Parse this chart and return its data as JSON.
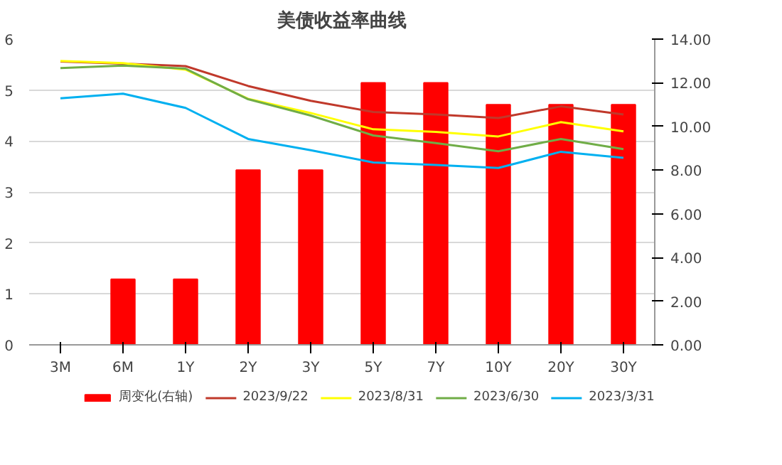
{
  "chart_data": {
    "type": "line",
    "title": "美债收益率曲线",
    "categories": [
      "3M",
      "6M",
      "1Y",
      "2Y",
      "3Y",
      "5Y",
      "7Y",
      "10Y",
      "20Y",
      "30Y"
    ],
    "series": [
      {
        "name": "周变化(右轴)",
        "type": "bar",
        "axis": "y2",
        "color": "#ff0000",
        "values": [
          0,
          3,
          3,
          8,
          8,
          12,
          12,
          11,
          11,
          11
        ]
      },
      {
        "name": "2023/9/22",
        "color": "#c0392b",
        "values": [
          5.56,
          5.52,
          5.47,
          5.08,
          4.79,
          4.57,
          4.52,
          4.45,
          4.68,
          4.52
        ]
      },
      {
        "name": "2023/8/31",
        "color": "#ffff00",
        "values": [
          5.57,
          5.53,
          5.4,
          4.83,
          4.55,
          4.23,
          4.18,
          4.09,
          4.37,
          4.19
        ]
      },
      {
        "name": "2023/6/30",
        "color": "#70ad47",
        "values": [
          5.43,
          5.48,
          5.42,
          4.82,
          4.5,
          4.11,
          3.96,
          3.8,
          4.04,
          3.84
        ]
      },
      {
        "name": "2023/3/31",
        "color": "#00b0f0",
        "values": [
          4.84,
          4.93,
          4.65,
          4.04,
          3.82,
          3.58,
          3.53,
          3.47,
          3.79,
          3.67
        ]
      }
    ],
    "ylim": [
      0,
      6
    ],
    "yticks": [
      0,
      1,
      2,
      3,
      4,
      5,
      6
    ],
    "y2lim": [
      0,
      14
    ],
    "y2ticks": [
      {
        "value": 0,
        "label": "0.00"
      },
      {
        "value": 2,
        "label": "2.00"
      },
      {
        "value": 4,
        "label": "4.00"
      },
      {
        "value": 6,
        "label": "6.00"
      },
      {
        "value": 8,
        "label": "8.00"
      },
      {
        "value": 10,
        "label": "10.00"
      },
      {
        "value": 12,
        "label": "12.00"
      },
      {
        "value": 14,
        "label": "14.00"
      }
    ],
    "grid": "y",
    "legend": "bottom",
    "marker": "none",
    "line_style": "solid"
  }
}
